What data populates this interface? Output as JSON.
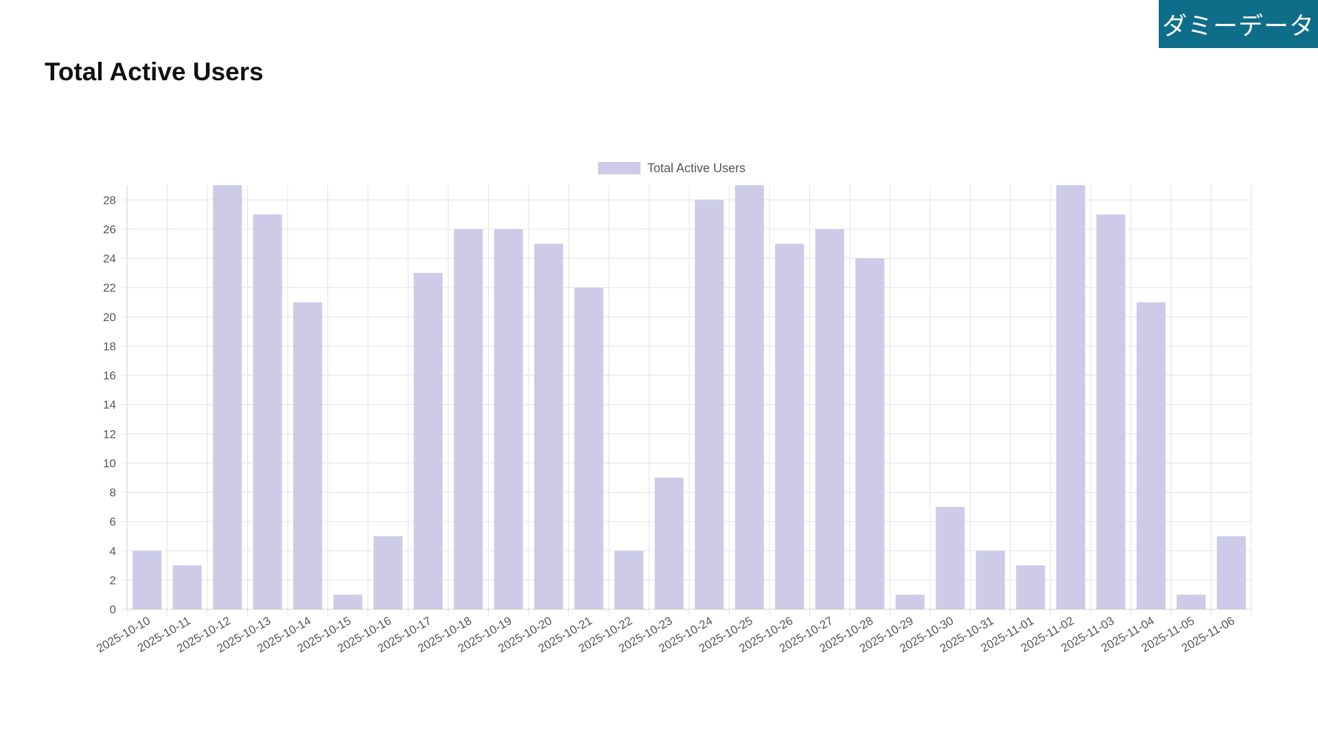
{
  "badge": {
    "label": "ダミーデータ",
    "color": "#0e6e8a"
  },
  "header": {
    "title": "Total Active Users"
  },
  "chart_data": {
    "type": "bar",
    "categories": [
      "2025-10-10",
      "2025-10-11",
      "2025-10-12",
      "2025-10-13",
      "2025-10-14",
      "2025-10-15",
      "2025-10-16",
      "2025-10-17",
      "2025-10-18",
      "2025-10-19",
      "2025-10-20",
      "2025-10-21",
      "2025-10-22",
      "2025-10-23",
      "2025-10-24",
      "2025-10-25",
      "2025-10-26",
      "2025-10-27",
      "2025-10-28",
      "2025-10-29",
      "2025-10-30",
      "2025-10-31",
      "2025-11-01",
      "2025-11-02",
      "2025-11-03",
      "2025-11-04",
      "2025-11-05",
      "2025-11-06"
    ],
    "series": [
      {
        "name": "Total Active Users",
        "values": [
          4,
          3,
          29,
          27,
          21,
          1,
          5,
          23,
          26,
          26,
          25,
          22,
          4,
          9,
          28,
          29,
          25,
          26,
          24,
          1,
          7,
          4,
          3,
          29,
          27,
          21,
          1,
          5
        ],
        "color": "#cdcbe8"
      }
    ],
    "ylim": [
      0,
      29
    ],
    "yticks": [
      0,
      2,
      4,
      6,
      8,
      10,
      12,
      14,
      16,
      18,
      20,
      22,
      24,
      26,
      28
    ],
    "grid": true,
    "legend": "top-center"
  }
}
